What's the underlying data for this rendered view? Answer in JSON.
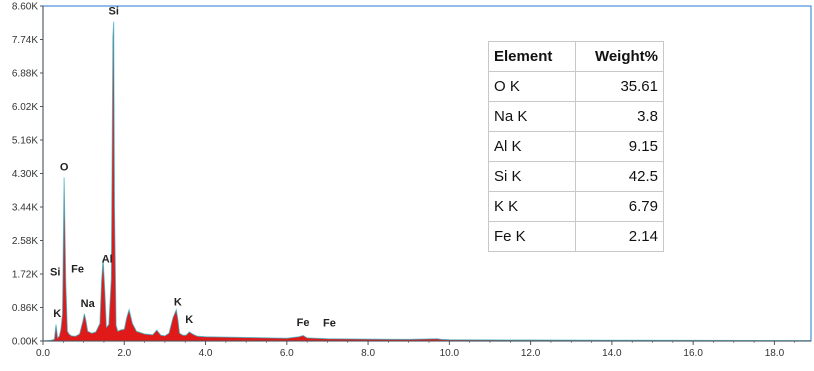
{
  "chart_data": {
    "type": "line",
    "title": "",
    "xlabel": "",
    "ylabel": "",
    "xlim": [
      0,
      18.9
    ],
    "ylim": [
      0,
      8600
    ],
    "x_ticks": [
      "0.0",
      "2.0",
      "4.0",
      "6.0",
      "8.0",
      "10.0",
      "12.0",
      "14.0",
      "16.0",
      "18.0"
    ],
    "y_ticks": [
      "0.00K",
      "0.86K",
      "1.72K",
      "2.58K",
      "3.44K",
      "4.30K",
      "5.16K",
      "6.02K",
      "6.88K",
      "7.74K",
      "8.60K"
    ],
    "series": [
      {
        "color": "#dd0000",
        "x": [
          0,
          0.2,
          0.28,
          0.32,
          0.36,
          0.4,
          0.44,
          0.48,
          0.52,
          0.56,
          0.6,
          0.64,
          0.7,
          0.8,
          0.9,
          0.98,
          1.02,
          1.06,
          1.1,
          1.2,
          1.3,
          1.4,
          1.44,
          1.48,
          1.52,
          1.56,
          1.62,
          1.68,
          1.72,
          1.74,
          1.76,
          1.8,
          1.84,
          1.9,
          2.0,
          2.06,
          2.12,
          2.2,
          2.3,
          2.5,
          2.7,
          2.8,
          2.9,
          3.0,
          3.1,
          3.2,
          3.28,
          3.32,
          3.36,
          3.44,
          3.52,
          3.6,
          3.7,
          3.8,
          4.0,
          4.5,
          5.0,
          6.0,
          6.3,
          6.4,
          6.5,
          7.0,
          8.0,
          9.0,
          9.7,
          9.8,
          10.0,
          12.0,
          14.0,
          16.0,
          18.9
        ],
        "y": [
          0,
          20,
          40,
          420,
          80,
          120,
          300,
          700,
          4200,
          1500,
          250,
          180,
          130,
          120,
          180,
          500,
          700,
          500,
          250,
          200,
          230,
          450,
          1500,
          2100,
          1300,
          350,
          420,
          1600,
          7800,
          8200,
          3500,
          400,
          250,
          280,
          300,
          600,
          800,
          450,
          250,
          180,
          160,
          280,
          150,
          130,
          200,
          600,
          800,
          550,
          200,
          150,
          150,
          230,
          170,
          120,
          110,
          100,
          90,
          70,
          110,
          140,
          80,
          60,
          50,
          40,
          60,
          40,
          30,
          25,
          20,
          15,
          10
        ]
      }
    ],
    "peak_labels": [
      {
        "text": "Si",
        "x": 1.74,
        "y": 8380
      },
      {
        "text": "O",
        "x": 0.52,
        "y": 4380
      },
      {
        "text": "Si",
        "x": 0.3,
        "y": 1680
      },
      {
        "text": "Fe",
        "x": 0.85,
        "y": 1760
      },
      {
        "text": "Al",
        "x": 1.58,
        "y": 2020
      },
      {
        "text": "Na",
        "x": 1.1,
        "y": 870
      },
      {
        "text": "K",
        "x": 0.35,
        "y": 620
      },
      {
        "text": "K",
        "x": 3.32,
        "y": 910
      },
      {
        "text": "K",
        "x": 3.6,
        "y": 460
      },
      {
        "text": "Fe",
        "x": 6.4,
        "y": 390
      },
      {
        "text": "Fe",
        "x": 7.05,
        "y": 370
      }
    ],
    "grid": false,
    "legend": "none"
  },
  "results_table": {
    "header": [
      "Element",
      "Weight%"
    ],
    "rows": [
      [
        "O K",
        "35.61"
      ],
      [
        "Na K",
        "3.8"
      ],
      [
        "Al K",
        "9.15"
      ],
      [
        "Si K",
        "42.5"
      ],
      [
        "K K",
        "6.79"
      ],
      [
        "Fe K",
        "2.14"
      ]
    ]
  },
  "colors": {
    "spectrum_fill": "#dd0000",
    "plot_border": "#4a90d9",
    "axis": "#555555"
  }
}
